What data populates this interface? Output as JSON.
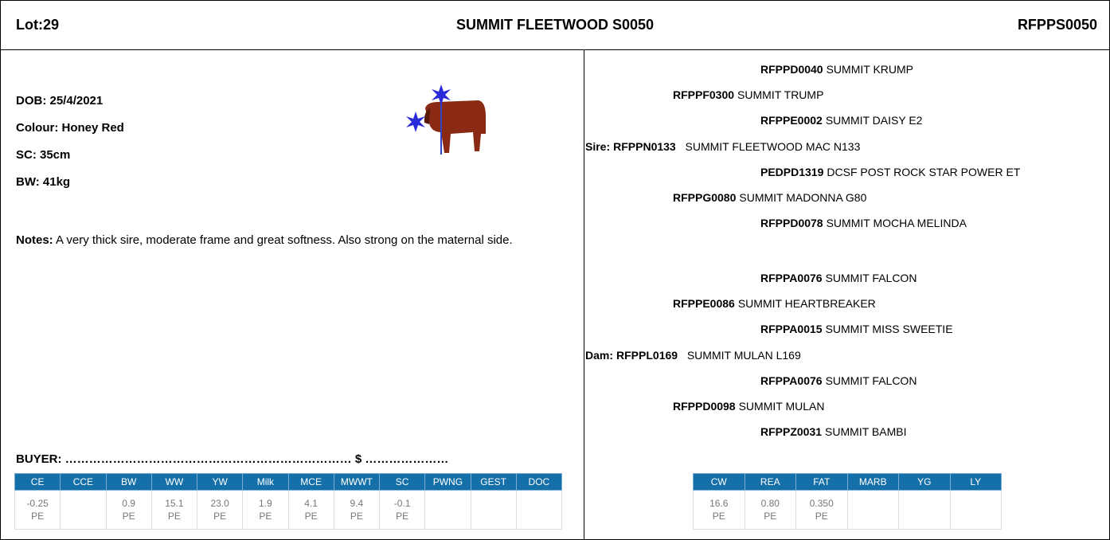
{
  "header": {
    "lot": "Lot:29",
    "name": "SUMMIT FLEETWOOD S0050",
    "id": "RFPPS0050"
  },
  "details": {
    "fields": [
      "DOB: 25/4/2021",
      "Colour: Honey Red",
      "SC: 35cm",
      "BW: 41kg"
    ],
    "notes_label": "Notes:",
    "notes": "A very thick sire, moderate frame and great softness. Also strong on the maternal side."
  },
  "buyer": "BUYER: ……………………………………………………………… $ …………………",
  "ebv_table": {
    "headers": [
      "CE",
      "CCE",
      "BW",
      "WW",
      "YW",
      "Milk",
      "MCE",
      "MWWT",
      "SC",
      "PWNG",
      "GEST",
      "DOC"
    ],
    "values": [
      "-0.25",
      null,
      "0.9",
      "15.1",
      "23.0",
      "1.9",
      "4.1",
      "9.4",
      "-0.1",
      null,
      null,
      null
    ],
    "accuracy": [
      "PE",
      null,
      "PE",
      "PE",
      "PE",
      "PE",
      "PE",
      "PE",
      "PE",
      null,
      null,
      null
    ]
  },
  "carcase_table": {
    "headers": [
      "CW",
      "REA",
      "FAT",
      "MARB",
      "YG",
      "LY"
    ],
    "values": [
      "16.6",
      "0.80",
      "0.350",
      null,
      null,
      null
    ],
    "accuracy": [
      "PE",
      "PE",
      "PE",
      null,
      null,
      null
    ]
  },
  "pedigree": {
    "sire": {
      "label": "Sire:",
      "code": "RFPPN0133",
      "name": "SUMMIT FLEETWOOD MAC N133",
      "sire": {
        "code": "RFPPF0300",
        "name": "SUMMIT TRUMP",
        "sire": {
          "code": "RFPPD0040",
          "name": "SUMMIT KRUMP"
        },
        "dam": {
          "code": "RFPPE0002",
          "name": "SUMMIT DAISY E2"
        }
      },
      "dam": {
        "code": "RFPPG0080",
        "name": "SUMMIT MADONNA G80",
        "sire": {
          "code": "PEDPD1319",
          "name": "DCSF POST ROCK STAR POWER ET"
        },
        "dam": {
          "code": "RFPPD0078",
          "name": "SUMMIT MOCHA MELINDA"
        }
      }
    },
    "dam": {
      "label": "Dam:",
      "code": "RFPPL0169",
      "name": "SUMMIT MULAN L169",
      "sire": {
        "code": "RFPPE0086",
        "name": "SUMMIT HEARTBREAKER",
        "sire": {
          "code": "RFPPA0076",
          "name": "SUMMIT FALCON"
        },
        "dam": {
          "code": "RFPPA0015",
          "name": "SUMMIT MISS SWEETIE"
        }
      },
      "dam": {
        "code": "RFPPD0098",
        "name": "SUMMIT MULAN",
        "sire": {
          "code": "RFPPA0076",
          "name": "SUMMIT FALCON"
        },
        "dam": {
          "code": "RFPPZ0031",
          "name": "SUMMIT BAMBI"
        }
      }
    }
  }
}
